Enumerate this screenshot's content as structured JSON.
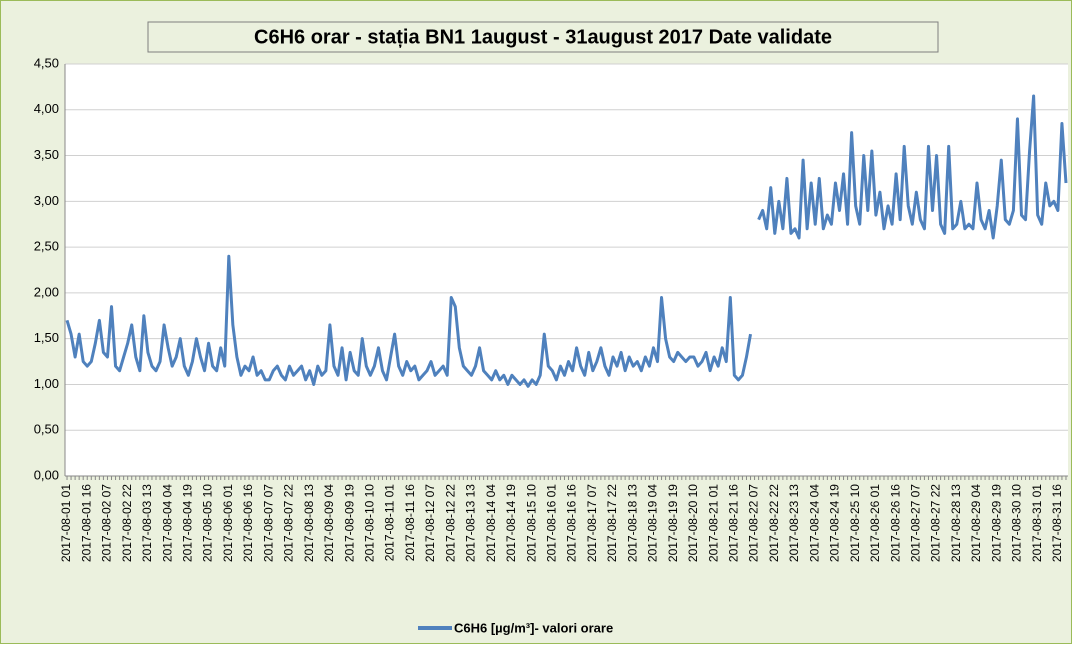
{
  "chart_data": {
    "type": "line",
    "title": "C6H6 orar - stația BN1  1august - 31august  2017  Date validate",
    "categories": [
      "2017-08-01 01",
      null,
      null,
      null,
      null,
      "2017-08-01 16",
      null,
      null,
      null,
      null,
      "2017-08-02 07",
      null,
      null,
      null,
      null,
      "2017-08-02 22",
      null,
      null,
      null,
      null,
      "2017-08-03 13",
      null,
      null,
      null,
      null,
      "2017-08-04 04",
      null,
      null,
      null,
      null,
      "2017-08-04 19",
      null,
      null,
      null,
      null,
      "2017-08-05 10",
      null,
      null,
      null,
      null,
      "2017-08-06 01",
      null,
      null,
      null,
      null,
      "2017-08-06 16",
      null,
      null,
      null,
      null,
      "2017-08-07 07",
      null,
      null,
      null,
      null,
      "2017-08-07 22",
      null,
      null,
      null,
      null,
      "2017-08-08 13",
      null,
      null,
      null,
      null,
      "2017-08-09 04",
      null,
      null,
      null,
      null,
      "2017-08-09 19",
      null,
      null,
      null,
      null,
      "2017-08-10 10",
      null,
      null,
      null,
      null,
      "2017-08-11 01",
      null,
      null,
      null,
      null,
      "2017-08-11 16",
      null,
      null,
      null,
      null,
      "2017-08-12 07",
      null,
      null,
      null,
      null,
      "2017-08-12 22",
      null,
      null,
      null,
      null,
      "2017-08-13 13",
      null,
      null,
      null,
      null,
      "2017-08-14 04",
      null,
      null,
      null,
      null,
      "2017-08-14 19",
      null,
      null,
      null,
      null,
      "2017-08-15 10",
      null,
      null,
      null,
      null,
      "2017-08-16 01",
      null,
      null,
      null,
      null,
      "2017-08-16 16",
      null,
      null,
      null,
      null,
      "2017-08-17 07",
      null,
      null,
      null,
      null,
      "2017-08-17 22",
      null,
      null,
      null,
      null,
      "2017-08-18 13",
      null,
      null,
      null,
      null,
      "2017-08-19 04",
      null,
      null,
      null,
      null,
      "2017-08-19 19",
      null,
      null,
      null,
      null,
      "2017-08-20 10",
      null,
      null,
      null,
      null,
      "2017-08-21 01",
      null,
      null,
      null,
      null,
      "2017-08-21 16",
      null,
      null,
      null,
      null,
      "2017-08-22 07",
      null,
      null,
      null,
      null,
      "2017-08-22 22",
      null,
      null,
      null,
      null,
      "2017-08-23 13",
      null,
      null,
      null,
      null,
      "2017-08-24 04",
      null,
      null,
      null,
      null,
      "2017-08-24 19",
      null,
      null,
      null,
      null,
      "2017-08-25 10",
      null,
      null,
      null,
      null,
      "2017-08-26 01",
      null,
      null,
      null,
      null,
      "2017-08-26 16",
      null,
      null,
      null,
      null,
      "2017-08-27 07",
      null,
      null,
      null,
      null,
      "2017-08-27 22",
      null,
      null,
      null,
      null,
      "2017-08-28 13",
      null,
      null,
      null,
      null,
      "2017-08-29 04",
      null,
      null,
      null,
      null,
      "2017-08-29 19",
      null,
      null,
      null,
      null,
      "2017-08-30 10",
      null,
      null,
      null,
      null,
      "2017-08-31 01",
      null,
      null,
      null,
      null,
      "2017-08-31 16",
      null,
      null
    ],
    "series": [
      {
        "name": "C6H6 [µg/m³]- valori orare",
        "color": "#4f81bd",
        "values": [
          1.7,
          1.55,
          1.3,
          1.55,
          1.25,
          1.2,
          1.25,
          1.45,
          1.7,
          1.35,
          1.3,
          1.85,
          1.2,
          1.15,
          1.3,
          1.45,
          1.65,
          1.3,
          1.15,
          1.75,
          1.35,
          1.2,
          1.15,
          1.25,
          1.65,
          1.4,
          1.2,
          1.3,
          1.5,
          1.2,
          1.1,
          1.25,
          1.5,
          1.3,
          1.15,
          1.45,
          1.2,
          1.15,
          1.4,
          1.2,
          2.4,
          1.65,
          1.3,
          1.1,
          1.2,
          1.15,
          1.3,
          1.1,
          1.15,
          1.05,
          1.05,
          1.15,
          1.2,
          1.1,
          1.05,
          1.2,
          1.1,
          1.15,
          1.2,
          1.05,
          1.15,
          1.0,
          1.2,
          1.1,
          1.15,
          1.65,
          1.2,
          1.1,
          1.4,
          1.05,
          1.35,
          1.15,
          1.1,
          1.5,
          1.2,
          1.1,
          1.2,
          1.4,
          1.15,
          1.05,
          1.3,
          1.55,
          1.2,
          1.1,
          1.25,
          1.15,
          1.2,
          1.05,
          1.1,
          1.15,
          1.25,
          1.1,
          1.15,
          1.2,
          1.1,
          1.95,
          1.85,
          1.4,
          1.2,
          1.15,
          1.1,
          1.2,
          1.4,
          1.15,
          1.1,
          1.05,
          1.15,
          1.05,
          1.1,
          1.0,
          1.1,
          1.05,
          1.0,
          1.05,
          0.98,
          1.05,
          1.0,
          1.1,
          1.55,
          1.2,
          1.15,
          1.05,
          1.2,
          1.1,
          1.25,
          1.15,
          1.4,
          1.2,
          1.1,
          1.35,
          1.15,
          1.25,
          1.4,
          1.2,
          1.1,
          1.3,
          1.2,
          1.35,
          1.15,
          1.3,
          1.2,
          1.25,
          1.15,
          1.3,
          1.2,
          1.4,
          1.25,
          1.95,
          1.5,
          1.3,
          1.25,
          1.35,
          1.3,
          1.25,
          1.3,
          1.3,
          1.2,
          1.25,
          1.35,
          1.15,
          1.3,
          1.2,
          1.4,
          1.25,
          1.95,
          1.1,
          1.05,
          1.1,
          1.3,
          1.55,
          null,
          2.8,
          2.9,
          2.7,
          3.15,
          2.65,
          3.0,
          2.7,
          3.25,
          2.65,
          2.7,
          2.6,
          3.45,
          2.7,
          3.2,
          2.75,
          3.25,
          2.7,
          2.85,
          2.75,
          3.2,
          2.9,
          3.3,
          2.75,
          3.75,
          2.95,
          2.75,
          3.5,
          2.9,
          3.55,
          2.85,
          3.1,
          2.7,
          2.95,
          2.75,
          3.3,
          2.8,
          3.6,
          2.95,
          2.75,
          3.1,
          2.8,
          2.7,
          3.6,
          2.9,
          3.5,
          2.75,
          2.65,
          3.6,
          2.7,
          2.75,
          3.0,
          2.7,
          2.75,
          2.7,
          3.2,
          2.8,
          2.7,
          2.9,
          2.6,
          2.95,
          3.45,
          2.8,
          2.75,
          2.9,
          3.9,
          2.85,
          2.8,
          3.55,
          4.15,
          2.85,
          2.75,
          3.2,
          2.95,
          3.0,
          2.9,
          3.85,
          3.2
        ]
      }
    ],
    "ylim": [
      0,
      4.5
    ],
    "yticks": [
      {
        "value": 0,
        "label": "0,00"
      },
      {
        "value": 0.5,
        "label": "0,50"
      },
      {
        "value": 1,
        "label": "1,00"
      },
      {
        "value": 1.5,
        "label": "1,50"
      },
      {
        "value": 2,
        "label": "2,00"
      },
      {
        "value": 2.5,
        "label": "2,50"
      },
      {
        "value": 3,
        "label": "3,00"
      },
      {
        "value": 3.5,
        "label": "3,50"
      },
      {
        "value": 4,
        "label": "4,00"
      },
      {
        "value": 4.5,
        "label": "4,50"
      }
    ],
    "grid": true,
    "legend": "bottom"
  }
}
